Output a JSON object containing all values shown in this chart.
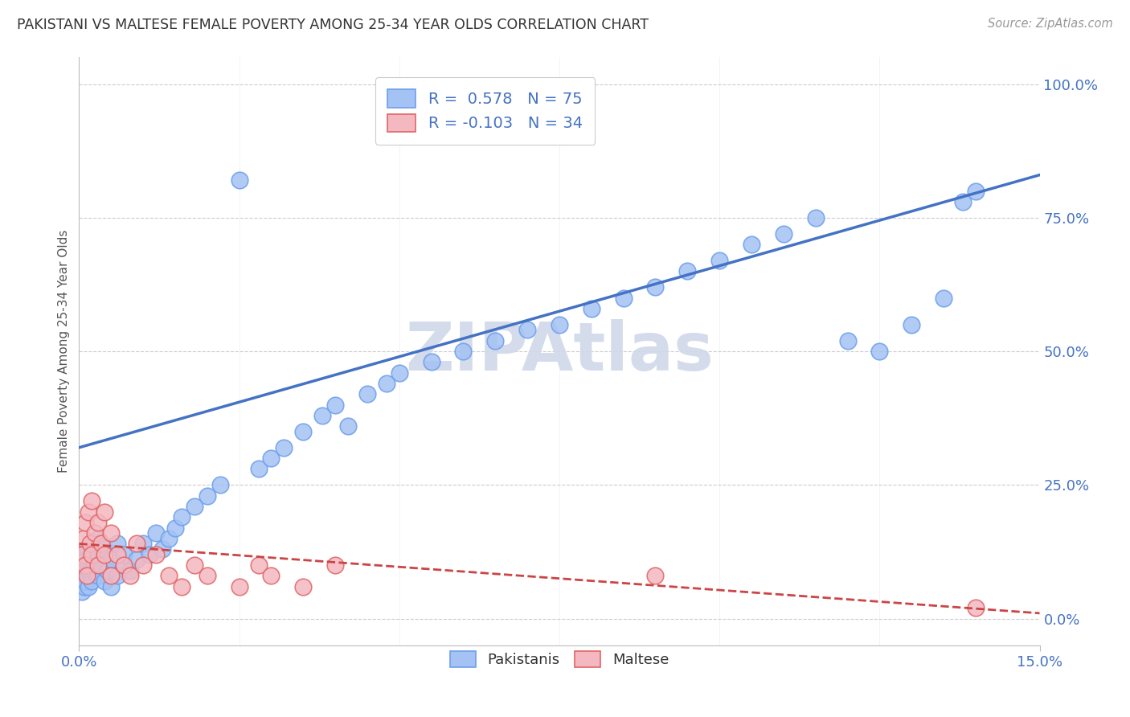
{
  "title": "PAKISTANI VS MALTESE FEMALE POVERTY AMONG 25-34 YEAR OLDS CORRELATION CHART",
  "source": "Source: ZipAtlas.com",
  "ylabel": "Female Poverty Among 25-34 Year Olds",
  "xlim": [
    0.0,
    0.15
  ],
  "ylim": [
    -0.05,
    1.05
  ],
  "ytick_positions": [
    0.0,
    0.25,
    0.5,
    0.75,
    1.0
  ],
  "yticklabels_right": [
    "0.0%",
    "25.0%",
    "50.0%",
    "75.0%",
    "100.0%"
  ],
  "pakistani_R": 0.578,
  "pakistani_N": 75,
  "maltese_R": -0.103,
  "maltese_N": 34,
  "pakistani_color": "#a4c2f4",
  "maltese_color": "#f4b8c1",
  "pakistani_edge_color": "#6d9eeb",
  "maltese_edge_color": "#e06666",
  "pakistani_line_color": "#4472c4",
  "maltese_line_color": "#cc4444",
  "watermark": "ZIPAtlas",
  "watermark_color": "#d0d8e8",
  "background_color": "#ffffff",
  "grid_color": "#cccccc",
  "title_color": "#333333",
  "axis_label_color": "#555555",
  "tick_color": "#4472c4",
  "legend_color": "#4472c4",
  "pak_x": [
    0.0004,
    0.0005,
    0.0006,
    0.0007,
    0.0008,
    0.0009,
    0.001,
    0.001,
    0.0012,
    0.0013,
    0.0014,
    0.0015,
    0.0016,
    0.0017,
    0.0018,
    0.002,
    0.002,
    0.0022,
    0.0023,
    0.0025,
    0.003,
    0.003,
    0.003,
    0.0035,
    0.004,
    0.004,
    0.0045,
    0.005,
    0.005,
    0.006,
    0.006,
    0.007,
    0.007,
    0.008,
    0.009,
    0.01,
    0.011,
    0.012,
    0.013,
    0.014,
    0.015,
    0.016,
    0.018,
    0.02,
    0.022,
    0.025,
    0.028,
    0.03,
    0.032,
    0.035,
    0.038,
    0.04,
    0.042,
    0.045,
    0.048,
    0.05,
    0.055,
    0.06,
    0.065,
    0.07,
    0.075,
    0.08,
    0.085,
    0.09,
    0.095,
    0.1,
    0.105,
    0.11,
    0.115,
    0.12,
    0.125,
    0.13,
    0.135,
    0.138,
    0.14
  ],
  "pak_y": [
    0.05,
    0.08,
    0.1,
    0.12,
    0.06,
    0.09,
    0.07,
    0.11,
    0.08,
    0.13,
    0.1,
    0.06,
    0.09,
    0.12,
    0.08,
    0.07,
    0.11,
    0.09,
    0.13,
    0.1,
    0.08,
    0.12,
    0.15,
    0.1,
    0.07,
    0.13,
    0.09,
    0.06,
    0.11,
    0.08,
    0.14,
    0.1,
    0.12,
    0.09,
    0.11,
    0.14,
    0.12,
    0.16,
    0.13,
    0.15,
    0.17,
    0.19,
    0.21,
    0.23,
    0.25,
    0.82,
    0.28,
    0.3,
    0.32,
    0.35,
    0.38,
    0.4,
    0.36,
    0.42,
    0.44,
    0.46,
    0.48,
    0.5,
    0.52,
    0.54,
    0.55,
    0.58,
    0.6,
    0.62,
    0.65,
    0.67,
    0.7,
    0.72,
    0.75,
    0.52,
    0.5,
    0.55,
    0.6,
    0.78,
    0.8
  ],
  "malt_x": [
    0.0005,
    0.0007,
    0.001,
    0.001,
    0.0012,
    0.0015,
    0.0017,
    0.002,
    0.002,
    0.0025,
    0.003,
    0.003,
    0.0035,
    0.004,
    0.004,
    0.005,
    0.005,
    0.006,
    0.007,
    0.008,
    0.009,
    0.01,
    0.012,
    0.014,
    0.016,
    0.018,
    0.02,
    0.025,
    0.028,
    0.03,
    0.035,
    0.04,
    0.09,
    0.14
  ],
  "malt_y": [
    0.12,
    0.15,
    0.1,
    0.18,
    0.08,
    0.2,
    0.14,
    0.12,
    0.22,
    0.16,
    0.1,
    0.18,
    0.14,
    0.12,
    0.2,
    0.08,
    0.16,
    0.12,
    0.1,
    0.08,
    0.14,
    0.1,
    0.12,
    0.08,
    0.06,
    0.1,
    0.08,
    0.06,
    0.1,
    0.08,
    0.06,
    0.1,
    0.08,
    0.02
  ],
  "blue_line_x": [
    0.0,
    0.15
  ],
  "blue_line_y": [
    0.32,
    0.83
  ],
  "pink_line_x": [
    0.0,
    0.15
  ],
  "pink_line_y": [
    0.14,
    0.01
  ]
}
